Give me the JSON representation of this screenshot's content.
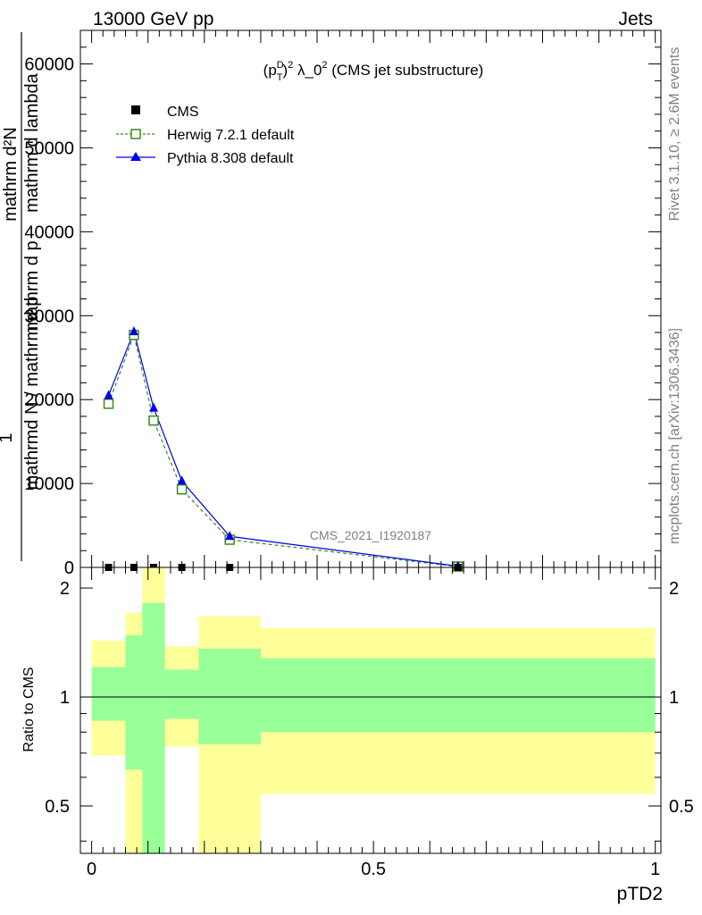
{
  "header": {
    "left": "13000 GeV pp",
    "right": "Jets"
  },
  "side_text": {
    "rivet": "Rivet 3.1.10, ≥ 2.6M events",
    "mcplots": "mcplots.cern.ch [arXiv:1306.3436]"
  },
  "watermark": "CMS_2021_I1920187",
  "chart_data": [
    {
      "type": "line",
      "title": "(p_T^D)^2 λ_0^2 (CMS jet substructure)",
      "title_parts": {
        "p": "(p",
        "sup_d": "D",
        "sub_t": "T",
        "close": ")",
        "sup_2": "2",
        "rest": " λ_0",
        "sup_2b": "2",
        "tail": " (CMS jet substructure)"
      },
      "ylabel_lines": [
        "1",
        "mathrmd N / mathrm d p",
        "mathrm d p",
        "mathrm d lambda",
        "mathrm d²N"
      ],
      "ylabel": {
        "one": "1",
        "frac_num": "mathrm d²N",
        "num_lines": [
          "mathrm d²N",
          "mathrm d p",
          "mathrm d p",
          "mathrm d lambda"
        ],
        "den": "mathrmd N / mathrm d p"
      },
      "xlabel": "pTD2",
      "xlim": [
        -0.02,
        1.01
      ],
      "ylim": [
        0,
        64000
      ],
      "yticks": [
        0,
        10000,
        20000,
        30000,
        40000,
        50000,
        60000
      ],
      "ytick_labels": [
        "0",
        "10000",
        "20000",
        "30000",
        "40000",
        "50000",
        "60000"
      ],
      "legend_position": "top-left",
      "series": [
        {
          "name": "CMS",
          "x": [
            0.03,
            0.075,
            0.11,
            0.16,
            0.245,
            0.65
          ],
          "y": [
            0,
            0,
            0,
            0,
            0,
            0
          ],
          "color": "#000000",
          "marker": "square"
        },
        {
          "name": "Herwig 7.2.1 default",
          "x": [
            0.03,
            0.075,
            0.11,
            0.16,
            0.245,
            0.65
          ],
          "y": [
            19500,
            27700,
            17500,
            9300,
            3300,
            100
          ],
          "color": "#3a8a1a",
          "marker": "open-square",
          "dashed": true
        },
        {
          "name": "Pythia 8.308 default",
          "x": [
            0.03,
            0.075,
            0.11,
            0.16,
            0.245,
            0.65
          ],
          "y": [
            20500,
            28100,
            19000,
            10300,
            3700,
            150
          ],
          "color": "#0000ee",
          "marker": "triangle"
        }
      ]
    },
    {
      "type": "area",
      "ylabel": "Ratio to CMS",
      "xlabel": "pTD2",
      "xlim": [
        -0.02,
        1.01
      ],
      "ylim": [
        0.37,
        2.28
      ],
      "log_scale_y": true,
      "yticks": [
        0.5,
        1,
        2
      ],
      "ytick_labels": [
        "0.5",
        "1",
        "2"
      ],
      "xticks": [
        0,
        0.5,
        1
      ],
      "xtick_labels": [
        "0",
        "0.5",
        "1"
      ],
      "bands": [
        {
          "x0": 0.0,
          "x1": 0.06,
          "yellow": [
            0.69,
            1.43
          ],
          "green": [
            0.86,
            1.21
          ]
        },
        {
          "x0": 0.06,
          "x1": 0.09,
          "yellow": [
            0.37,
            1.71
          ],
          "green": [
            0.63,
            1.48
          ]
        },
        {
          "x0": 0.09,
          "x1": 0.13,
          "yellow": [
            0.37,
            2.28
          ],
          "green": [
            0.37,
            1.82
          ]
        },
        {
          "x0": 0.13,
          "x1": 0.19,
          "yellow": [
            0.73,
            1.38
          ],
          "green": [
            0.87,
            1.19
          ]
        },
        {
          "x0": 0.19,
          "x1": 0.3,
          "yellow": [
            0.37,
            1.67
          ],
          "green": [
            0.74,
            1.36
          ]
        },
        {
          "x0": 0.3,
          "x1": 1.0,
          "yellow": [
            0.54,
            1.55
          ],
          "green": [
            0.8,
            1.28
          ]
        }
      ]
    }
  ]
}
